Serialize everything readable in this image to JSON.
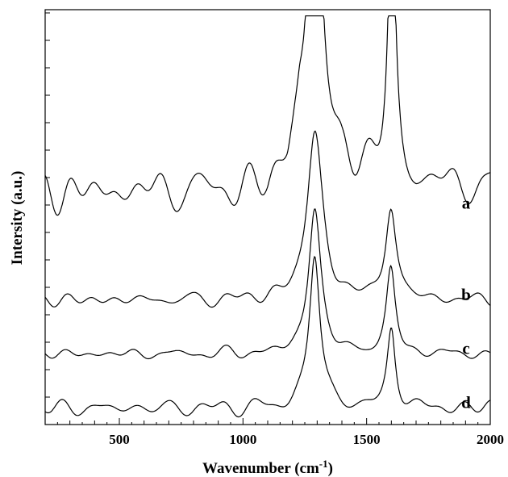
{
  "chart_data": {
    "type": "line",
    "xlabel": "Wavenumber (cm",
    "xlabel_sup": "-1",
    "xlabel_end": ")",
    "ylabel": "Intersity (a.u.)",
    "xlim": [
      200,
      2000
    ],
    "xticks": [
      500,
      1000,
      1500,
      2000
    ],
    "xtick_labels": [
      "500",
      "1000",
      "1500",
      "2000"
    ],
    "y_units": "arbitrary",
    "grid": false,
    "series": [
      {
        "name": "a",
        "baseline": 0.52,
        "noise": 0.05,
        "background": [
          [
            200,
            0.04
          ],
          [
            1100,
            0.05
          ],
          [
            1180,
            0.1
          ],
          [
            1230,
            0.22
          ],
          [
            1400,
            0.12
          ],
          [
            1500,
            0.1
          ],
          [
            1700,
            0.06
          ],
          [
            2000,
            0.06
          ]
        ],
        "peaks": [
          {
            "center": 1290,
            "height": 0.98,
            "width": 24
          },
          {
            "center": 1602,
            "height": 0.64,
            "width": 18
          }
        ]
      },
      {
        "name": "b",
        "baseline": 0.3,
        "noise": 0.018,
        "background": [
          [
            200,
            0.0
          ],
          [
            1100,
            0.0
          ],
          [
            1700,
            0.0
          ],
          [
            2000,
            0.0
          ]
        ],
        "peaks": [
          {
            "center": 1290,
            "height": 0.4,
            "width": 38
          },
          {
            "center": 1598,
            "height": 0.22,
            "width": 26
          }
        ]
      },
      {
        "name": "c",
        "baseline": 0.17,
        "noise": 0.014,
        "background": [
          [
            200,
            0.0
          ],
          [
            2000,
            0.0
          ]
        ],
        "peaks": [
          {
            "center": 1290,
            "height": 0.35,
            "width": 30
          },
          {
            "center": 1598,
            "height": 0.2,
            "width": 22
          }
        ]
      },
      {
        "name": "d",
        "baseline": 0.04,
        "noise": 0.022,
        "background": [
          [
            200,
            0.0
          ],
          [
            2000,
            0.0
          ]
        ],
        "peaks": [
          {
            "center": 1290,
            "height": 0.38,
            "width": 26
          },
          {
            "center": 1600,
            "height": 0.19,
            "width": 20
          }
        ]
      }
    ]
  }
}
